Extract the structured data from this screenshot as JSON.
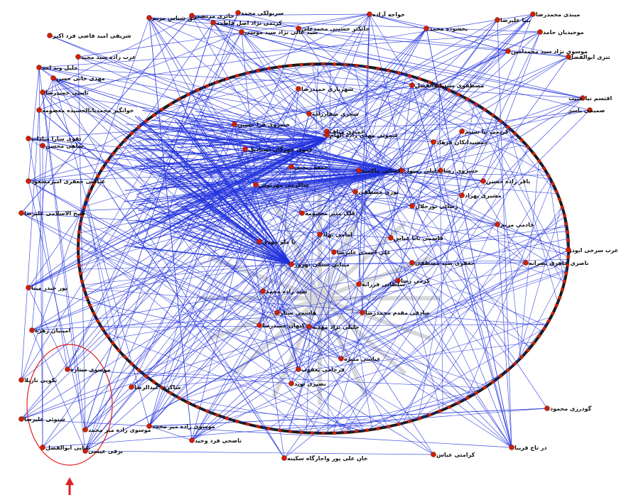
{
  "colors": {
    "edge": "#2233dd",
    "node": "#cc2200",
    "ring": "#1a1a1a",
    "highlight": "#e02020",
    "watermark": "#d8d8d8"
  },
  "outer_nodes": [
    "حق شناس مریم",
    "حائری مرتضی",
    "کریمی نژاد اصل فاطمه",
    "سربولکی محمد",
    "سید عالی نژاد سید موسی",
    "جانکثر حسینی محمدعلی",
    "خواجه آزاده",
    "بخشوده محمد",
    "بینا علیرضا",
    "میبدی محمدرضا",
    "موحیدیان حامد",
    "موسوی نژاد سید محمدامین",
    "تنزی ابوالفضل",
    "اقتسم نیا حبیب",
    "صمیمی یاسر",
    "شریفی امید فاضی فرد اکبر",
    "عرب زاده سید مجید",
    "خلیل وند احد",
    "مهدی خانی حسن",
    "نایینی حمیدرضا",
    "خوانگیر محمدیابالجسیده معصومه",
    "تقوی سارا سادات",
    "ساهی محسن",
    "عباسی جعفری امیرمسعود",
    "شیخ الاسلامی علیرضا",
    "پور حیدر مینا",
    "امینیان زهره",
    "موسوی ستاره",
    "تکویی نازیلا",
    "شنوئی علیرضا",
    "موسوی زاده میر محمد",
    "بابایی ابوالفضل",
    "برقی عیسی",
    "شاکری عبدالرضا",
    "موسوی زاده میر محمد",
    "ناصحی فرد وحید",
    "خان علی پور واجارگاه سکینه",
    "کرامتی عباس",
    "در تاج فریبا",
    "گودرزی محمود",
    "عرب سرخی ابوذر",
    "خادمی مریم"
  ],
  "inner_nodes": [
    "شهریاری حمیدرضا",
    "مصطفوی سید ابوالفضل",
    "شجری صفارزاده",
    "خسروی فرا حسین",
    "عمیدی مناف",
    "عموی چهرگان استادیک",
    "شموئی مهدی زاده الهام",
    "جمعه ریختی",
    "کریمی نیا نسیم",
    "جمشیدانکان فرهاد",
    "کسائی ماکسه",
    "حسروی رضا",
    "خلیلی رسول",
    "باقر زاده حسین",
    "مشیری بهزاد",
    "شاکرمی مهرنوش",
    "نوری مصطفی",
    "رضائی نورجلال",
    "فلک منیر معصومه",
    "امامی نهاد",
    "پا ملو مهدی",
    "قاسمی بابا عباس",
    "علی احمدی علیرضا",
    "مینایی ستکی بهروز",
    "جعفری سید مصطفی",
    "کرمی رضا",
    "سلطانی فرزانه",
    "سید زاده محمد",
    "هاشمی ستار",
    "کیهان حمیدرضا",
    "صادقی مقدم محمدرضا",
    "جلیلی نژاد مهدیه",
    "عباسی منیژه",
    "فرجامی یعقوب",
    "نصیری نوید",
    "ناصری جاهرق نصرانه"
  ],
  "annotation": {
    "arrow": "↑"
  }
}
